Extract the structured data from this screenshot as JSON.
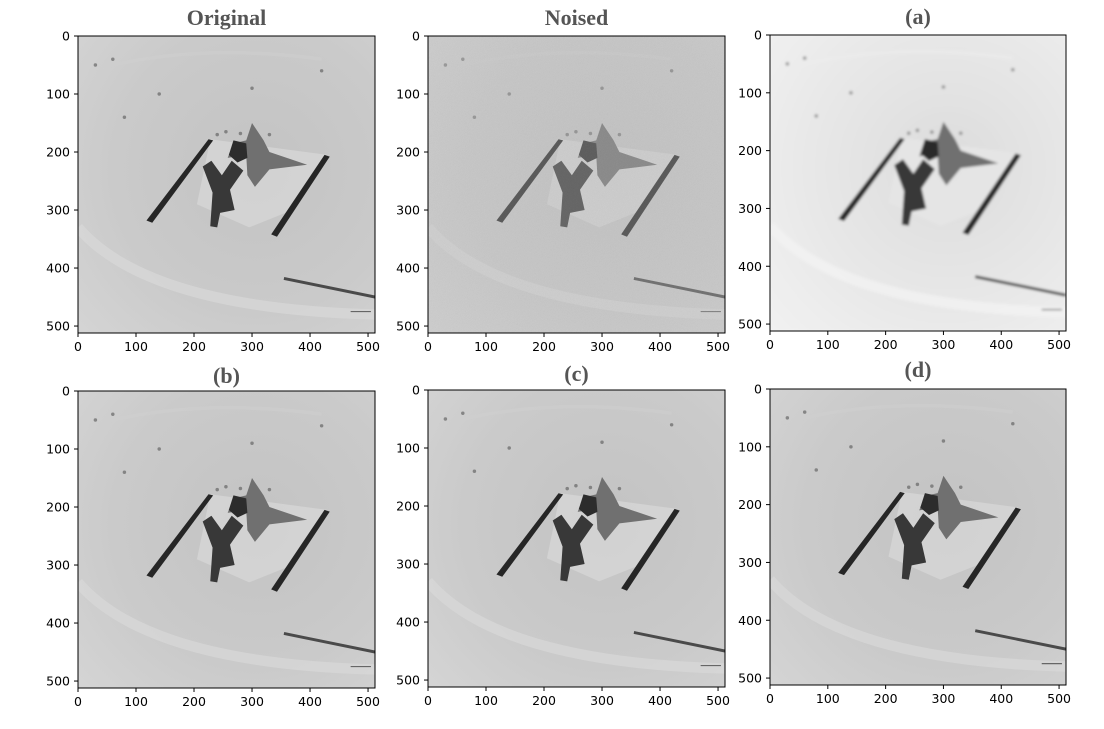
{
  "figure": {
    "panels": [
      {
        "id": "original",
        "title": "Original",
        "noise": false,
        "blur": false
      },
      {
        "id": "noised",
        "title": "Noised",
        "noise": true,
        "blur": false
      },
      {
        "id": "a",
        "title": "(a)",
        "noise": false,
        "blur": true
      },
      {
        "id": "b",
        "title": "(b)",
        "noise": false,
        "blur": false
      },
      {
        "id": "c",
        "title": "(c)",
        "noise": false,
        "blur": false
      },
      {
        "id": "d",
        "title": "(d)",
        "noise": false,
        "blur": false
      }
    ],
    "x_ticks": [
      "0",
      "100",
      "200",
      "300",
      "400",
      "500"
    ],
    "y_ticks": [
      "0",
      "100",
      "200",
      "300",
      "400",
      "500"
    ],
    "axis_range": [
      0,
      512
    ],
    "colors": {
      "background": "#c8c8c8",
      "dark_shape": "#3a3a3a",
      "title": "#555555",
      "ticks": "#000000"
    }
  }
}
